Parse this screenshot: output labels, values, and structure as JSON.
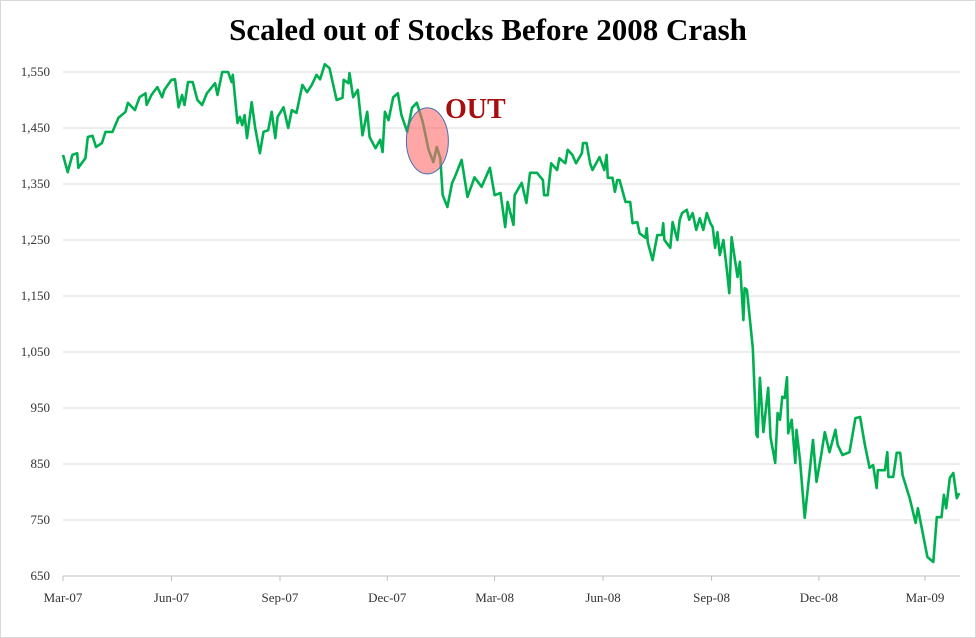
{
  "chart_data": {
    "type": "line",
    "title": "Scaled out of Stocks Before 2008 Crash",
    "xlabel": "",
    "ylabel": "",
    "ylim": [
      650,
      1600
    ],
    "xlim": [
      "2007-03-01",
      "2009-03-31"
    ],
    "grid": "horizontal",
    "yticks": [
      650,
      750,
      850,
      950,
      1050,
      1150,
      1250,
      1350,
      1450,
      1550
    ],
    "ytick_labels": [
      "650",
      "750",
      "850",
      "950",
      "1,050",
      "1,150",
      "1,250",
      "1,350",
      "1,450",
      "1,550"
    ],
    "xticks": [
      "2007-03-01",
      "2007-06-01",
      "2007-09-01",
      "2007-12-01",
      "2008-03-01",
      "2008-06-01",
      "2008-09-01",
      "2008-12-01",
      "2009-03-01"
    ],
    "xtick_labels": [
      "Mar-07",
      "Jun-07",
      "Sep-07",
      "Dec-07",
      "Mar-08",
      "Jun-08",
      "Sep-08",
      "Dec-08",
      "Mar-09"
    ],
    "colors": {
      "line": "#00b050",
      "annotation_text": "#a50f0f",
      "marker_fill": "#ff6b6b",
      "marker_stroke": "#4a6fb5",
      "grid": "#d9d9d9"
    },
    "annotation": {
      "text": "OUT",
      "marker": "ellipse",
      "x": "2008-01-04",
      "y": 1427
    },
    "series": [
      {
        "points": [
          [
            "2007-03-01",
            1402
          ],
          [
            "2007-03-05",
            1371
          ],
          [
            "2007-03-09",
            1402
          ],
          [
            "2007-03-13",
            1405
          ],
          [
            "2007-03-14",
            1379
          ],
          [
            "2007-03-20",
            1396
          ],
          [
            "2007-03-22",
            1434
          ],
          [
            "2007-03-26",
            1436
          ],
          [
            "2007-03-29",
            1416
          ],
          [
            "2007-04-03",
            1423
          ],
          [
            "2007-04-06",
            1443
          ],
          [
            "2007-04-12",
            1443
          ],
          [
            "2007-04-17",
            1468
          ],
          [
            "2007-04-23",
            1479
          ],
          [
            "2007-04-25",
            1495
          ],
          [
            "2007-05-01",
            1482
          ],
          [
            "2007-05-05",
            1505
          ],
          [
            "2007-05-10",
            1512
          ],
          [
            "2007-05-11",
            1491
          ],
          [
            "2007-05-15",
            1509
          ],
          [
            "2007-05-20",
            1523
          ],
          [
            "2007-05-24",
            1505
          ],
          [
            "2007-05-26",
            1518
          ],
          [
            "2007-06-01",
            1536
          ],
          [
            "2007-06-04",
            1537
          ],
          [
            "2007-06-07",
            1487
          ],
          [
            "2007-06-10",
            1509
          ],
          [
            "2007-06-12",
            1491
          ],
          [
            "2007-06-15",
            1532
          ],
          [
            "2007-06-19",
            1532
          ],
          [
            "2007-06-23",
            1500
          ],
          [
            "2007-06-27",
            1491
          ],
          [
            "2007-07-01",
            1512
          ],
          [
            "2007-07-08",
            1530
          ],
          [
            "2007-07-10",
            1509
          ],
          [
            "2007-07-14",
            1550
          ],
          [
            "2007-07-19",
            1550
          ],
          [
            "2007-07-22",
            1532
          ],
          [
            "2007-07-23",
            1545
          ],
          [
            "2007-07-27",
            1459
          ],
          [
            "2007-07-29",
            1470
          ],
          [
            "2007-07-31",
            1455
          ],
          [
            "2007-08-02",
            1473
          ],
          [
            "2007-08-04",
            1432
          ],
          [
            "2007-08-08",
            1496
          ],
          [
            "2007-08-11",
            1450
          ],
          [
            "2007-08-15",
            1405
          ],
          [
            "2007-08-18",
            1443
          ],
          [
            "2007-08-22",
            1446
          ],
          [
            "2007-08-25",
            1479
          ],
          [
            "2007-08-28",
            1432
          ],
          [
            "2007-08-30",
            1470
          ],
          [
            "2007-09-04",
            1487
          ],
          [
            "2007-09-08",
            1450
          ],
          [
            "2007-09-11",
            1482
          ],
          [
            "2007-09-15",
            1477
          ],
          [
            "2007-09-20",
            1527
          ],
          [
            "2007-09-24",
            1514
          ],
          [
            "2007-09-28",
            1527
          ],
          [
            "2007-10-02",
            1545
          ],
          [
            "2007-10-05",
            1537
          ],
          [
            "2007-10-09",
            1564
          ],
          [
            "2007-10-13",
            1557
          ],
          [
            "2007-10-19",
            1500
          ],
          [
            "2007-10-24",
            1504
          ],
          [
            "2007-10-25",
            1536
          ],
          [
            "2007-10-29",
            1530
          ],
          [
            "2007-10-30",
            1548
          ],
          [
            "2007-11-02",
            1505
          ],
          [
            "2007-11-06",
            1518
          ],
          [
            "2007-11-10",
            1437
          ],
          [
            "2007-11-14",
            1479
          ],
          [
            "2007-11-16",
            1434
          ],
          [
            "2007-11-21",
            1414
          ],
          [
            "2007-11-25",
            1429
          ],
          [
            "2007-11-27",
            1407
          ],
          [
            "2007-11-29",
            1479
          ],
          [
            "2007-12-02",
            1464
          ],
          [
            "2007-12-06",
            1505
          ],
          [
            "2007-12-10",
            1512
          ],
          [
            "2007-12-13",
            1473
          ],
          [
            "2007-12-18",
            1443
          ],
          [
            "2007-12-22",
            1486
          ],
          [
            "2007-12-26",
            1495
          ],
          [
            "2007-12-31",
            1461
          ],
          [
            "2008-01-05",
            1411
          ],
          [
            "2008-01-09",
            1389
          ],
          [
            "2008-01-12",
            1416
          ],
          [
            "2008-01-15",
            1396
          ],
          [
            "2008-01-17",
            1330
          ],
          [
            "2008-01-21",
            1309
          ],
          [
            "2008-01-25",
            1352
          ],
          [
            "2008-01-27",
            1361
          ],
          [
            "2008-02-02",
            1393
          ],
          [
            "2008-02-07",
            1327
          ],
          [
            "2008-02-13",
            1362
          ],
          [
            "2008-02-19",
            1345
          ],
          [
            "2008-02-26",
            1379
          ],
          [
            "2008-03-01",
            1330
          ],
          [
            "2008-03-06",
            1334
          ],
          [
            "2008-03-10",
            1273
          ],
          [
            "2008-03-12",
            1318
          ],
          [
            "2008-03-17",
            1277
          ],
          [
            "2008-03-18",
            1330
          ],
          [
            "2008-03-24",
            1352
          ],
          [
            "2008-03-28",
            1316
          ],
          [
            "2008-03-31",
            1370
          ],
          [
            "2008-04-06",
            1370
          ],
          [
            "2008-04-11",
            1357
          ],
          [
            "2008-04-12",
            1330
          ],
          [
            "2008-04-15",
            1330
          ],
          [
            "2008-04-18",
            1387
          ],
          [
            "2008-04-23",
            1375
          ],
          [
            "2008-04-25",
            1396
          ],
          [
            "2008-04-30",
            1387
          ],
          [
            "2008-05-02",
            1411
          ],
          [
            "2008-05-06",
            1402
          ],
          [
            "2008-05-09",
            1387
          ],
          [
            "2008-05-14",
            1405
          ],
          [
            "2008-05-15",
            1423
          ],
          [
            "2008-05-18",
            1423
          ],
          [
            "2008-05-21",
            1387
          ],
          [
            "2008-05-23",
            1375
          ],
          [
            "2008-05-29",
            1398
          ],
          [
            "2008-06-02",
            1375
          ],
          [
            "2008-06-04",
            1402
          ],
          [
            "2008-06-05",
            1361
          ],
          [
            "2008-06-09",
            1361
          ],
          [
            "2008-06-11",
            1336
          ],
          [
            "2008-06-13",
            1357
          ],
          [
            "2008-06-15",
            1357
          ],
          [
            "2008-06-20",
            1318
          ],
          [
            "2008-06-24",
            1318
          ],
          [
            "2008-06-26",
            1280
          ],
          [
            "2008-06-30",
            1282
          ],
          [
            "2008-07-02",
            1262
          ],
          [
            "2008-07-07",
            1254
          ],
          [
            "2008-07-08",
            1271
          ],
          [
            "2008-07-09",
            1245
          ],
          [
            "2008-07-13",
            1214
          ],
          [
            "2008-07-17",
            1259
          ],
          [
            "2008-07-21",
            1259
          ],
          [
            "2008-07-22",
            1280
          ],
          [
            "2008-07-23",
            1250
          ],
          [
            "2008-07-28",
            1236
          ],
          [
            "2008-07-30",
            1282
          ],
          [
            "2008-08-03",
            1250
          ],
          [
            "2008-08-05",
            1286
          ],
          [
            "2008-08-07",
            1298
          ],
          [
            "2008-08-11",
            1304
          ],
          [
            "2008-08-13",
            1286
          ],
          [
            "2008-08-16",
            1298
          ],
          [
            "2008-08-19",
            1268
          ],
          [
            "2008-08-22",
            1289
          ],
          [
            "2008-08-25",
            1268
          ],
          [
            "2008-08-28",
            1298
          ],
          [
            "2008-08-31",
            1280
          ],
          [
            "2008-09-02",
            1273
          ],
          [
            "2008-09-04",
            1236
          ],
          [
            "2008-09-06",
            1264
          ],
          [
            "2008-09-08",
            1223
          ],
          [
            "2008-09-11",
            1250
          ],
          [
            "2008-09-14",
            1196
          ],
          [
            "2008-09-16",
            1155
          ],
          [
            "2008-09-18",
            1255
          ],
          [
            "2008-09-23",
            1184
          ],
          [
            "2008-09-25",
            1211
          ],
          [
            "2008-09-28",
            1107
          ],
          [
            "2008-09-29",
            1164
          ],
          [
            "2008-10-01",
            1161
          ],
          [
            "2008-10-06",
            1057
          ],
          [
            "2008-10-09",
            902
          ],
          [
            "2008-10-10",
            898
          ],
          [
            "2008-10-12",
            1004
          ],
          [
            "2008-10-15",
            907
          ],
          [
            "2008-10-19",
            986
          ],
          [
            "2008-10-21",
            898
          ],
          [
            "2008-10-25",
            852
          ],
          [
            "2008-10-27",
            941
          ],
          [
            "2008-10-29",
            929
          ],
          [
            "2008-10-31",
            970
          ],
          [
            "2008-11-02",
            968
          ],
          [
            "2008-11-04",
            1005
          ],
          [
            "2008-11-05",
            905
          ],
          [
            "2008-11-08",
            929
          ],
          [
            "2008-11-11",
            852
          ],
          [
            "2008-11-12",
            911
          ],
          [
            "2008-11-15",
            857
          ],
          [
            "2008-11-19",
            754
          ],
          [
            "2008-11-26",
            893
          ],
          [
            "2008-11-29",
            818
          ],
          [
            "2008-12-03",
            866
          ],
          [
            "2008-12-06",
            907
          ],
          [
            "2008-12-10",
            871
          ],
          [
            "2008-12-15",
            911
          ],
          [
            "2008-12-17",
            884
          ],
          [
            "2008-12-21",
            866
          ],
          [
            "2008-12-27",
            871
          ],
          [
            "2009-01-01",
            932
          ],
          [
            "2009-01-05",
            934
          ],
          [
            "2009-01-09",
            884
          ],
          [
            "2009-01-13",
            843
          ],
          [
            "2009-01-16",
            848
          ],
          [
            "2009-01-19",
            807
          ],
          [
            "2009-01-20",
            839
          ],
          [
            "2009-01-26",
            839
          ],
          [
            "2009-01-28",
            871
          ],
          [
            "2009-01-29",
            827
          ],
          [
            "2009-02-02",
            827
          ],
          [
            "2009-02-05",
            870
          ],
          [
            "2009-02-08",
            870
          ],
          [
            "2009-02-10",
            830
          ],
          [
            "2009-02-16",
            789
          ],
          [
            "2009-02-21",
            745
          ],
          [
            "2009-02-23",
            771
          ],
          [
            "2009-03-03",
            684
          ],
          [
            "2009-03-08",
            675
          ],
          [
            "2009-03-11",
            755
          ],
          [
            "2009-03-15",
            755
          ],
          [
            "2009-03-17",
            795
          ],
          [
            "2009-03-19",
            771
          ],
          [
            "2009-03-22",
            825
          ],
          [
            "2009-03-25",
            834
          ],
          [
            "2009-03-28",
            789
          ],
          [
            "2009-03-30",
            798
          ]
        ]
      }
    ]
  }
}
